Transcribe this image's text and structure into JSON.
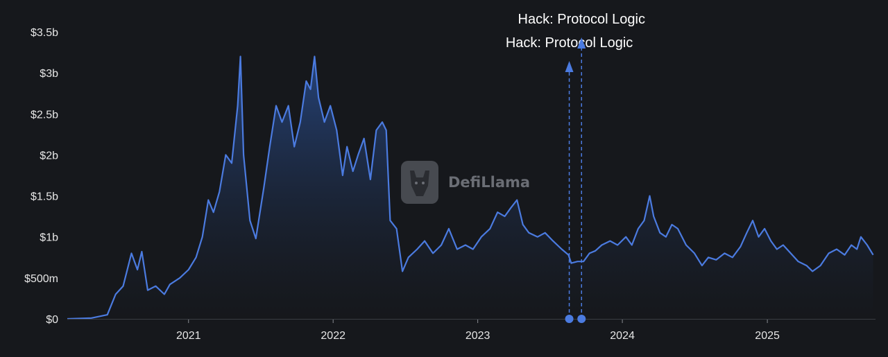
{
  "chart_data": {
    "type": "area",
    "x_ticks": [
      "2021",
      "2022",
      "2023",
      "2024",
      "2025"
    ],
    "y_ticks": [
      "$0",
      "$500m",
      "$1b",
      "$1.5b",
      "$2b",
      "$2.5b",
      "$3b",
      "$3.5b"
    ],
    "ylim": [
      0,
      3500000000
    ],
    "xlim": [
      "2020-03-01",
      "2025-10-01"
    ],
    "grid": false,
    "series_color": "#4b7be0",
    "series": [
      {
        "x": [
          "2020-03-01",
          "2020-05-01",
          "2020-06-10",
          "2020-07-01",
          "2020-07-20",
          "2020-08-10",
          "2020-08-25",
          "2020-09-05",
          "2020-09-20",
          "2020-10-10",
          "2020-11-01",
          "2020-11-15",
          "2020-12-10",
          "2021-01-01",
          "2021-01-20",
          "2021-02-05",
          "2021-02-20",
          "2021-03-05",
          "2021-03-20",
          "2021-04-05",
          "2021-04-20",
          "2021-05-05",
          "2021-05-12",
          "2021-05-20",
          "2021-06-05",
          "2021-06-20",
          "2021-07-10",
          "2021-07-25",
          "2021-08-10",
          "2021-08-25",
          "2021-09-10",
          "2021-09-25",
          "2021-10-10",
          "2021-10-25",
          "2021-11-05",
          "2021-11-15",
          "2021-11-25",
          "2021-12-10",
          "2021-12-25",
          "2022-01-10",
          "2022-01-25",
          "2022-02-05",
          "2022-02-20",
          "2022-03-05",
          "2022-03-20",
          "2022-04-05",
          "2022-04-20",
          "2022-05-05",
          "2022-05-15",
          "2022-05-25",
          "2022-06-10",
          "2022-06-25",
          "2022-07-10",
          "2022-08-01",
          "2022-08-20",
          "2022-09-10",
          "2022-10-01",
          "2022-10-20",
          "2022-11-10",
          "2022-12-01",
          "2022-12-20",
          "2023-01-10",
          "2023-02-01",
          "2023-02-20",
          "2023-03-10",
          "2023-03-25",
          "2023-04-10",
          "2023-04-25",
          "2023-05-10",
          "2023-06-01",
          "2023-06-20",
          "2023-07-10",
          "2023-08-01",
          "2023-08-18",
          "2023-08-25",
          "2023-09-10",
          "2023-09-25",
          "2023-10-10",
          "2023-10-25",
          "2023-11-10",
          "2023-12-01",
          "2023-12-20",
          "2024-01-10",
          "2024-01-25",
          "2024-02-10",
          "2024-02-25",
          "2024-03-10",
          "2024-03-20",
          "2024-04-05",
          "2024-04-20",
          "2024-05-05",
          "2024-05-20",
          "2024-06-10",
          "2024-07-01",
          "2024-07-20",
          "2024-08-05",
          "2024-08-25",
          "2024-09-15",
          "2024-10-05",
          "2024-10-25",
          "2024-11-10",
          "2024-11-25",
          "2024-12-10",
          "2024-12-25",
          "2025-01-10",
          "2025-01-25",
          "2025-02-10",
          "2025-03-01",
          "2025-03-20",
          "2025-04-10",
          "2025-04-25",
          "2025-05-15",
          "2025-06-05",
          "2025-06-25",
          "2025-07-15",
          "2025-08-01",
          "2025-08-15",
          "2025-08-25",
          "2025-09-10",
          "2025-09-25"
        ],
        "values": [
          0,
          10000000,
          50000000,
          300000000,
          400000000,
          800000000,
          600000000,
          820000000,
          350000000,
          400000000,
          300000000,
          420000000,
          500000000,
          600000000,
          750000000,
          1000000000,
          1450000000,
          1300000000,
          1550000000,
          2000000000,
          1900000000,
          2600000000,
          3200000000,
          2000000000,
          1200000000,
          980000000,
          1600000000,
          2100000000,
          2600000000,
          2400000000,
          2600000000,
          2100000000,
          2400000000,
          2900000000,
          2800000000,
          3200000000,
          2700000000,
          2400000000,
          2600000000,
          2300000000,
          1750000000,
          2100000000,
          1800000000,
          2000000000,
          2200000000,
          1700000000,
          2300000000,
          2400000000,
          2300000000,
          1200000000,
          1100000000,
          580000000,
          750000000,
          850000000,
          950000000,
          800000000,
          900000000,
          1100000000,
          850000000,
          900000000,
          850000000,
          1000000000,
          1100000000,
          1300000000,
          1250000000,
          1350000000,
          1450000000,
          1150000000,
          1050000000,
          1000000000,
          1050000000,
          950000000,
          850000000,
          780000000,
          680000000,
          700000000,
          700000000,
          800000000,
          830000000,
          900000000,
          950000000,
          900000000,
          1000000000,
          900000000,
          1100000000,
          1200000000,
          1500000000,
          1250000000,
          1050000000,
          1000000000,
          1150000000,
          1100000000,
          900000000,
          800000000,
          650000000,
          750000000,
          720000000,
          800000000,
          750000000,
          880000000,
          1050000000,
          1200000000,
          1000000000,
          1100000000,
          950000000,
          850000000,
          900000000,
          800000000,
          700000000,
          650000000,
          580000000,
          650000000,
          800000000,
          850000000,
          780000000,
          900000000,
          850000000,
          1000000000,
          900000000,
          780000000
        ]
      }
    ],
    "annotations": [
      {
        "date": "2023-08-20",
        "label": "Hack: Protocol Logic"
      },
      {
        "date": "2023-09-20",
        "label": "Hack: Protocol Logic"
      }
    ]
  },
  "watermark": {
    "text": "DefiLlama"
  }
}
